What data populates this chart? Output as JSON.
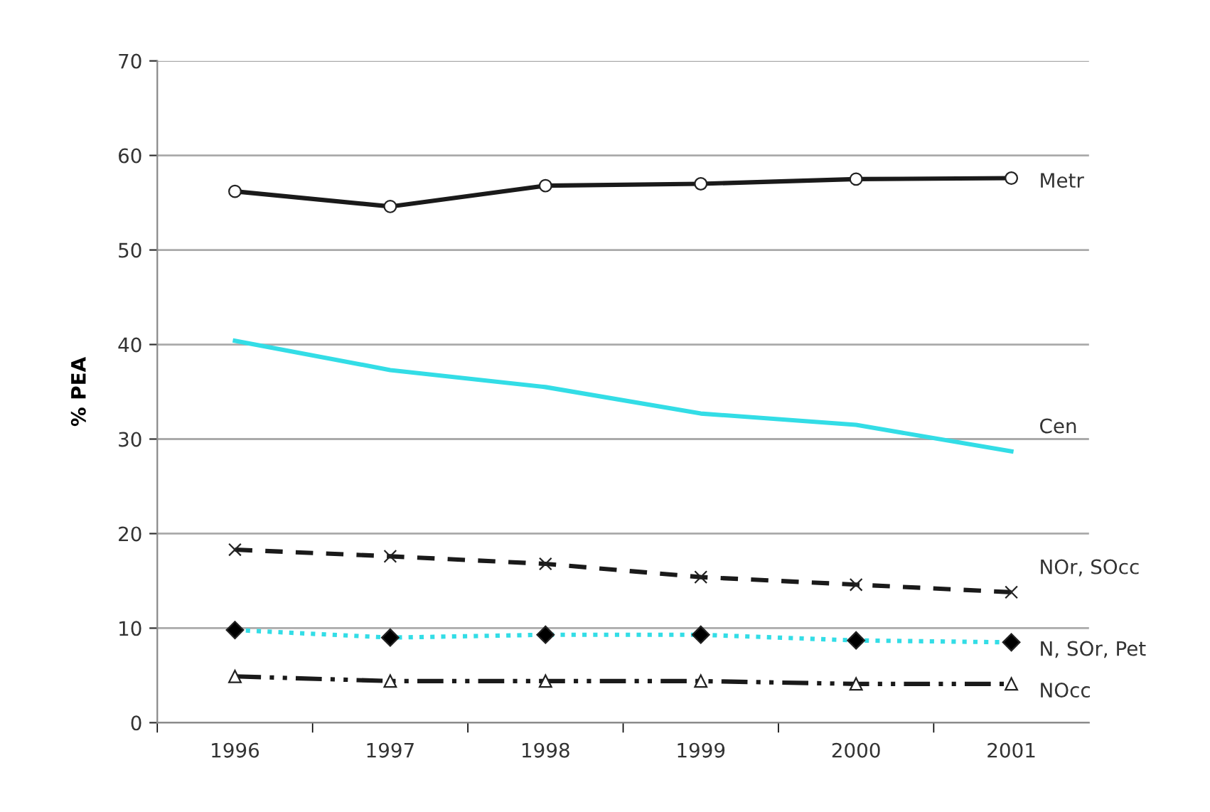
{
  "chart_data": {
    "type": "line",
    "ylabel": "% PEA",
    "categories": [
      "1996",
      "1997",
      "1998",
      "1999",
      "2000",
      "2001"
    ],
    "ylim": [
      0,
      70
    ],
    "yticks": [
      0,
      10,
      20,
      30,
      40,
      50,
      60,
      70
    ],
    "grid": "y",
    "legend": false,
    "series": [
      {
        "name": "Metr",
        "color": "#1a1a1a",
        "marker": "circle",
        "line_style": "solid",
        "values": [
          56.2,
          54.6,
          56.8,
          57.0,
          57.5,
          57.6
        ]
      },
      {
        "name": "Cen",
        "color": "#33dde6",
        "marker": "none",
        "line_style": "solid",
        "values": [
          40.4,
          37.3,
          35.5,
          32.7,
          31.5,
          28.7
        ]
      },
      {
        "name": "NOr, SOcc",
        "color": "#1a1a1a",
        "marker": "cross",
        "line_style": "dashed",
        "values": [
          18.3,
          17.6,
          16.8,
          15.4,
          14.6,
          13.8
        ]
      },
      {
        "name": "N, SOr, Pet",
        "color": "#33dde6",
        "marker": "diamond",
        "line_style": "dotted",
        "values": [
          9.8,
          9.0,
          9.3,
          9.3,
          8.7,
          8.5
        ]
      },
      {
        "name": "NOcc",
        "color": "#1a1a1a",
        "marker": "triangle",
        "line_style": "dashdot",
        "values": [
          4.9,
          4.4,
          4.4,
          4.4,
          4.1,
          4.1
        ]
      }
    ]
  }
}
